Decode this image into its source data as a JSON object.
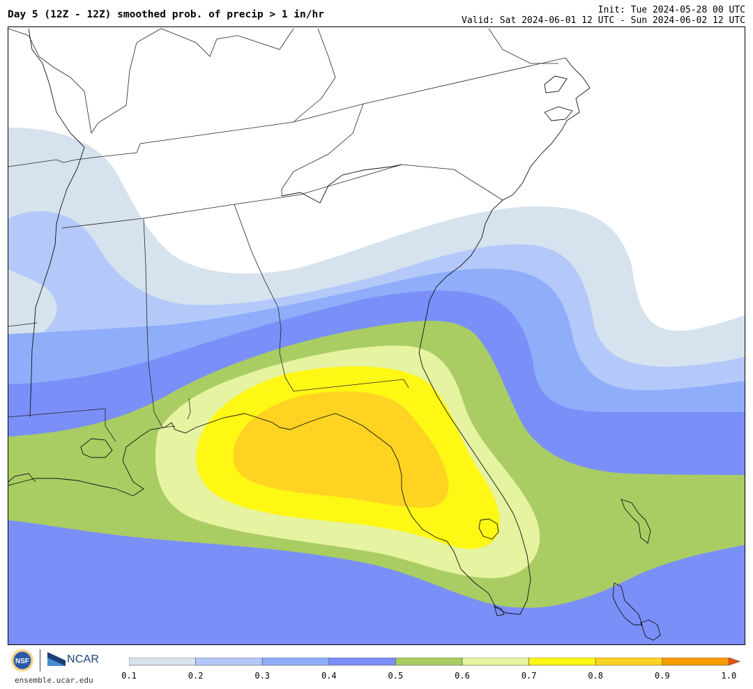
{
  "header": {
    "title": "Day 5 (12Z - 12Z) smoothed prob. of precip > 1 in/hr",
    "init": "Init: Tue 2024-05-28 00 UTC",
    "valid": "Valid: Sat 2024-06-01 12 UTC - Sun 2024-06-02 12 UTC"
  },
  "footer": {
    "logo_left": "NSF",
    "logo_right": "NCAR",
    "url": "ensemble.ucar.edu"
  },
  "legend": {
    "ticks": [
      "0.1",
      "0.2",
      "0.3",
      "0.4",
      "0.5",
      "0.6",
      "0.7",
      "0.8",
      "0.9",
      "1.0"
    ],
    "colors": [
      "#d6e2ee",
      "#b4c8fa",
      "#8eaefa",
      "#7b8ff8",
      "#a9cd63",
      "#e6f3a0",
      "#fff714",
      "#fed322",
      "#f79c03"
    ],
    "extend_color": "#ea4f12"
  },
  "map": {
    "region": "southeastern-us",
    "contour_levels": [
      0.1,
      0.2,
      0.3,
      0.4,
      0.5,
      0.6,
      0.7,
      0.8,
      0.9
    ],
    "max_probability_band": "0.8-0.9"
  }
}
